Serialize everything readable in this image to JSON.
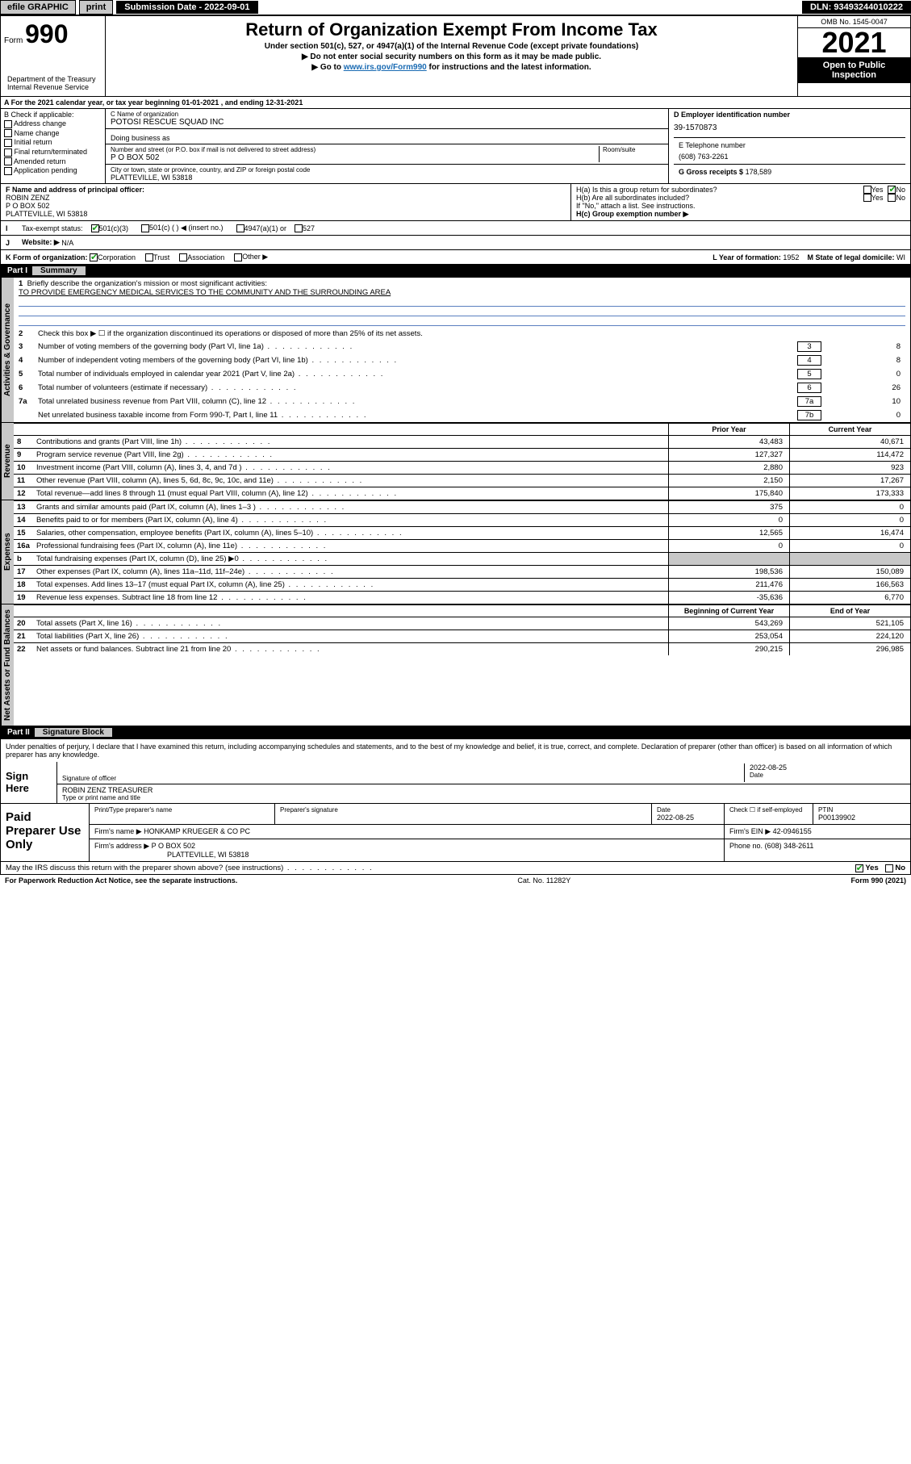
{
  "topbar": {
    "efile": "efile GRAPHIC",
    "print": "print",
    "submission": "Submission Date - 2022-09-01",
    "dln": "DLN: 93493244010222"
  },
  "header": {
    "form_word": "Form",
    "form_num": "990",
    "title": "Return of Organization Exempt From Income Tax",
    "line1": "Under section 501(c), 527, or 4947(a)(1) of the Internal Revenue Code (except private foundations)",
    "line2": "▶ Do not enter social security numbers on this form as it may be made public.",
    "line3_pre": "▶ Go to ",
    "line3_link": "www.irs.gov/Form990",
    "line3_post": " for instructions and the latest information.",
    "omb": "OMB No. 1545-0047",
    "year": "2021",
    "pubinspect": "Open to Public Inspection",
    "dept": "Department of the Treasury Internal Revenue Service"
  },
  "row_a": "A For the 2021 calendar year, or tax year beginning 01-01-2021    , and ending 12-31-2021",
  "block_b": {
    "label": "B Check if applicable:",
    "addr_change": "Address change",
    "name_change": "Name change",
    "initial": "Initial return",
    "final": "Final return/terminated",
    "amended": "Amended return",
    "app_pending": "Application pending"
  },
  "block_c": {
    "name_label": "C Name of organization",
    "name": "POTOSI RESCUE SQUAD INC",
    "dba_label": "Doing business as",
    "street_label": "Number and street (or P.O. box if mail is not delivered to street address)",
    "room_label": "Room/suite",
    "street": "P O BOX 502",
    "city_label": "City or town, state or province, country, and ZIP or foreign postal code",
    "city": "PLATTEVILLE, WI  53818"
  },
  "block_de": {
    "ein_label": "D Employer identification number",
    "ein": "39-1570873",
    "phone_label": "E Telephone number",
    "phone": "(608) 763-2261",
    "gross_label": "G Gross receipts $",
    "gross": "178,589"
  },
  "block_f": {
    "label": "F  Name and address of principal officer:",
    "name": "ROBIN ZENZ",
    "addr1": "P O BOX 502",
    "addr2": "PLATTEVILLE, WI  53818"
  },
  "block_h": {
    "ha": "H(a)  Is this a group return for subordinates?",
    "hb": "H(b)  Are all subordinates included?",
    "hb_note": "If \"No,\" attach a list. See instructions.",
    "hc": "H(c)  Group exemption number ▶",
    "yes": "Yes",
    "no": "No"
  },
  "row_i": {
    "label": "Tax-exempt status:",
    "o1": "501(c)(3)",
    "o2": "501(c) (  ) ◀ (insert no.)",
    "o3": "4947(a)(1) or",
    "o4": "527"
  },
  "row_j": {
    "label": "Website: ▶",
    "val": "N/A"
  },
  "row_k": {
    "label": "K Form of organization:",
    "corp": "Corporation",
    "trust": "Trust",
    "assoc": "Association",
    "other": "Other ▶",
    "year_label": "L Year of formation:",
    "year": "1952",
    "state_label": "M State of legal domicile:",
    "state": "WI"
  },
  "part1": {
    "label": "Part I",
    "title": "Summary"
  },
  "summary": {
    "l1_label": "Briefly describe the organization's mission or most significant activities:",
    "l1_text": "TO PROVIDE EMERGENCY MEDICAL SERVICES TO THE COMMUNITY AND THE SURROUNDING AREA",
    "l2": "Check this box ▶ ☐  if the organization discontinued its operations or disposed of more than 25% of its net assets.",
    "l3": "Number of voting members of the governing body (Part VI, line 1a)",
    "l3v": "8",
    "l4": "Number of independent voting members of the governing body (Part VI, line 1b)",
    "l4v": "8",
    "l5": "Total number of individuals employed in calendar year 2021 (Part V, line 2a)",
    "l5v": "0",
    "l6": "Total number of volunteers (estimate if necessary)",
    "l6v": "26",
    "l7a": "Total unrelated business revenue from Part VIII, column (C), line 12",
    "l7av": "10",
    "l7b": "Net unrelated business taxable income from Form 990-T, Part I, line 11",
    "l7bv": "0"
  },
  "rev_hdr": {
    "prior": "Prior Year",
    "current": "Current Year"
  },
  "revenue": [
    {
      "n": "8",
      "t": "Contributions and grants (Part VIII, line 1h)",
      "p": "43,483",
      "c": "40,671"
    },
    {
      "n": "9",
      "t": "Program service revenue (Part VIII, line 2g)",
      "p": "127,327",
      "c": "114,472"
    },
    {
      "n": "10",
      "t": "Investment income (Part VIII, column (A), lines 3, 4, and 7d )",
      "p": "2,880",
      "c": "923"
    },
    {
      "n": "11",
      "t": "Other revenue (Part VIII, column (A), lines 5, 6d, 8c, 9c, 10c, and 11e)",
      "p": "2,150",
      "c": "17,267"
    },
    {
      "n": "12",
      "t": "Total revenue—add lines 8 through 11 (must equal Part VIII, column (A), line 12)",
      "p": "175,840",
      "c": "173,333"
    }
  ],
  "expenses": [
    {
      "n": "13",
      "t": "Grants and similar amounts paid (Part IX, column (A), lines 1–3 )",
      "p": "375",
      "c": "0"
    },
    {
      "n": "14",
      "t": "Benefits paid to or for members (Part IX, column (A), line 4)",
      "p": "0",
      "c": "0"
    },
    {
      "n": "15",
      "t": "Salaries, other compensation, employee benefits (Part IX, column (A), lines 5–10)",
      "p": "12,565",
      "c": "16,474"
    },
    {
      "n": "16a",
      "t": "Professional fundraising fees (Part IX, column (A), line 11e)",
      "p": "0",
      "c": "0"
    },
    {
      "n": "b",
      "t": "Total fundraising expenses (Part IX, column (D), line 25) ▶0",
      "p": "",
      "c": "",
      "shaded": true
    },
    {
      "n": "17",
      "t": "Other expenses (Part IX, column (A), lines 11a–11d, 11f–24e)",
      "p": "198,536",
      "c": "150,089"
    },
    {
      "n": "18",
      "t": "Total expenses. Add lines 13–17 (must equal Part IX, column (A), line 25)",
      "p": "211,476",
      "c": "166,563"
    },
    {
      "n": "19",
      "t": "Revenue less expenses. Subtract line 18 from line 12",
      "p": "-35,636",
      "c": "6,770"
    }
  ],
  "net_hdr": {
    "begin": "Beginning of Current Year",
    "end": "End of Year"
  },
  "netassets": [
    {
      "n": "20",
      "t": "Total assets (Part X, line 16)",
      "p": "543,269",
      "c": "521,105"
    },
    {
      "n": "21",
      "t": "Total liabilities (Part X, line 26)",
      "p": "253,054",
      "c": "224,120"
    },
    {
      "n": "22",
      "t": "Net assets or fund balances. Subtract line 21 from line 20",
      "p": "290,215",
      "c": "296,985"
    }
  ],
  "part2": {
    "label": "Part II",
    "title": "Signature Block"
  },
  "sig": {
    "decl": "Under penalties of perjury, I declare that I have examined this return, including accompanying schedules and statements, and to the best of my knowledge and belief, it is true, correct, and complete. Declaration of preparer (other than officer) is based on all information of which preparer has any knowledge.",
    "sign_here": "Sign Here",
    "sig_officer": "Signature of officer",
    "date": "2022-08-25",
    "date_label": "Date",
    "officer_name": "ROBIN ZENZ  TREASURER",
    "type_name": "Type or print name and title"
  },
  "paid": {
    "label": "Paid Preparer Use Only",
    "print_name_label": "Print/Type preparer's name",
    "prep_sig_label": "Preparer's signature",
    "date_label": "Date",
    "date": "2022-08-25",
    "check_label": "Check ☐ if self-employed",
    "ptin_label": "PTIN",
    "ptin": "P00139902",
    "firm_name_label": "Firm's name     ▶",
    "firm_name": "HONKAMP KRUEGER & CO PC",
    "firm_ein_label": "Firm's EIN ▶",
    "firm_ein": "42-0946155",
    "firm_addr_label": "Firm's address ▶",
    "firm_addr1": "P O BOX 502",
    "firm_addr2": "PLATTEVILLE, WI  53818",
    "phone_label": "Phone no.",
    "phone": "(608) 348-2611"
  },
  "footer": {
    "irs_discuss": "May the IRS discuss this return with the preparer shown above? (see instructions)",
    "yes": "Yes",
    "no": "No",
    "paperwork": "For Paperwork Reduction Act Notice, see the separate instructions.",
    "catno": "Cat. No. 11282Y",
    "form": "Form 990 (2021)"
  },
  "vlabels": {
    "act_gov": "Activities & Governance",
    "revenue": "Revenue",
    "expenses": "Expenses",
    "net": "Net Assets or Fund Balances"
  },
  "colors": {
    "link": "#1a6bb3",
    "shade": "#c8c8c8",
    "check": "#1a9e1a"
  }
}
